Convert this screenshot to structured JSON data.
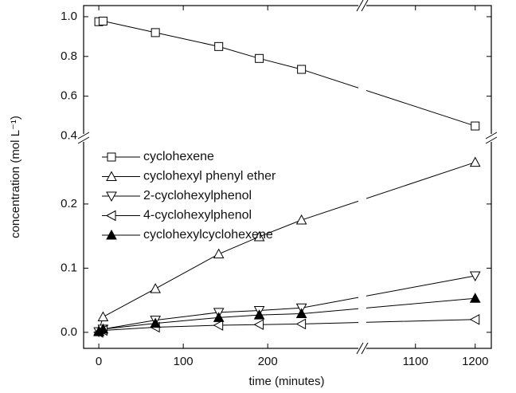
{
  "chart_data": {
    "type": "line",
    "xlabel": "time (minutes)",
    "ylabel": "concentration (mol L⁻¹)",
    "x_segments": [
      {
        "xlim": [
          -18,
          312
        ],
        "xticks": [
          0,
          100,
          200
        ]
      },
      {
        "xlim": [
          1011,
          1227
        ],
        "xticks": [
          1100,
          1200
        ]
      }
    ],
    "y_segments": [
      {
        "ylim": [
          -0.025,
          0.303
        ],
        "yticks": [
          {
            "value": 0,
            "label": "0.0"
          },
          0.1,
          0.2
        ]
      },
      {
        "ylim": [
          0.39,
          1.056
        ],
        "yticks": [
          0.4,
          0.6,
          0.8,
          {
            "value": 1,
            "label": "1.0"
          }
        ]
      }
    ],
    "series": [
      {
        "name": "cyclohexene",
        "marker": "square",
        "color": "#000000",
        "x": [
          0,
          5,
          67,
          142,
          190,
          240,
          1200
        ],
        "values": [
          0.975,
          0.978,
          0.92,
          0.85,
          0.79,
          0.735,
          0.45
        ]
      },
      {
        "name": "cyclohexyl phenyl ether",
        "marker": "triangle-up",
        "color": "#000000",
        "x": [
          0,
          5,
          67,
          142,
          190,
          240,
          1200
        ],
        "values": [
          0.002,
          0.024,
          0.068,
          0.122,
          0.149,
          0.175,
          0.265
        ]
      },
      {
        "name": "2-cyclohexylphenol",
        "marker": "triangle-down",
        "color": "#000000",
        "x": [
          0,
          5,
          67,
          142,
          190,
          240,
          1200
        ],
        "values": [
          0.001,
          0.005,
          0.019,
          0.031,
          0.034,
          0.038,
          0.088
        ]
      },
      {
        "name": "4-cyclohexylphenol",
        "marker": "triangle-left",
        "color": "#000000",
        "x": [
          0,
          5,
          67,
          142,
          190,
          240,
          1200
        ],
        "values": [
          0,
          0.003,
          0.008,
          0.011,
          0.012,
          0.013,
          0.02
        ]
      },
      {
        "name": "cyclohexylcyclohexene",
        "marker": "triangle-up-filled",
        "color": "#000000",
        "x": [
          0,
          5,
          67,
          142,
          190,
          240,
          1200
        ],
        "values": [
          0.001,
          0.005,
          0.014,
          0.023,
          0.027,
          0.029,
          0.053
        ]
      }
    ]
  }
}
